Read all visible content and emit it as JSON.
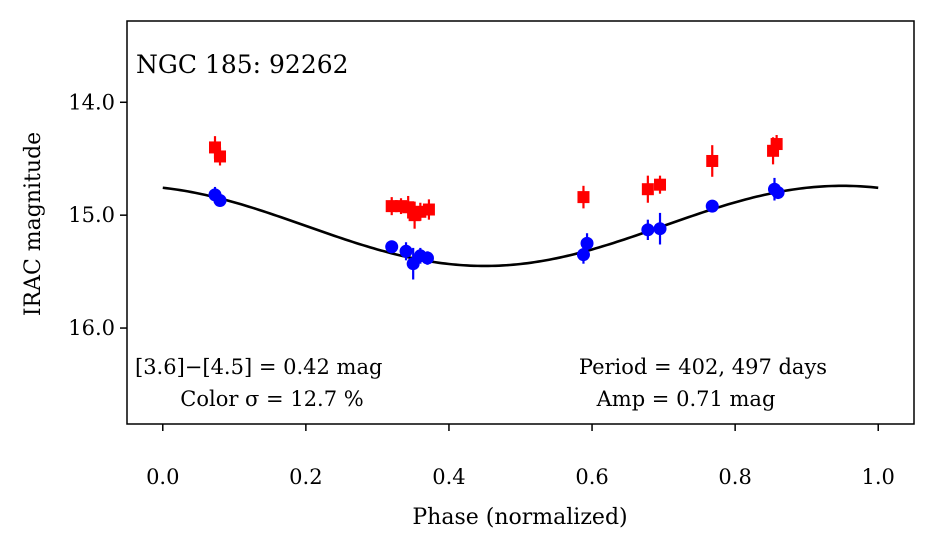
{
  "chart_data": {
    "type": "scatter",
    "title": "",
    "xlabel": "Phase (normalized)",
    "ylabel": "IRAC magnitude",
    "xlim": [
      -0.05,
      1.05
    ],
    "ylim": [
      16.85,
      13.28
    ],
    "y_inverted": true,
    "xticks": [
      0.0,
      0.2,
      0.4,
      0.6,
      0.8,
      1.0
    ],
    "xtick_labels": [
      "0.0",
      "0.2",
      "0.4",
      "0.6",
      "0.8",
      "1.0"
    ],
    "yticks": [
      14.0,
      15.0,
      16.0
    ],
    "ytick_labels": [
      "14.0",
      "15.0",
      "16.0"
    ],
    "grid": false,
    "legend": "none",
    "annotations": {
      "star": "NGC 185: 92262",
      "color_diff": "[3.6]−[4.5] = 0.42 mag",
      "color_sigma": "Color σ = 12.7 %",
      "period": "Period = 402, 497 days",
      "amp": "Amp = 0.71 mag"
    },
    "series": [
      {
        "color": "#ff0000",
        "marker": "square",
        "points": [
          {
            "x": 0.073,
            "y": 14.4,
            "err": 0.1
          },
          {
            "x": 0.08,
            "y": 14.48,
            "err": 0.08
          },
          {
            "x": 0.32,
            "y": 14.92,
            "err": 0.08
          },
          {
            "x": 0.333,
            "y": 14.92,
            "err": 0.07
          },
          {
            "x": 0.343,
            "y": 14.93,
            "err": 0.1
          },
          {
            "x": 0.352,
            "y": 15.0,
            "err": 0.12
          },
          {
            "x": 0.36,
            "y": 14.97,
            "err": 0.08
          },
          {
            "x": 0.372,
            "y": 14.95,
            "err": 0.09
          },
          {
            "x": 0.588,
            "y": 14.84,
            "err": 0.1
          },
          {
            "x": 0.678,
            "y": 14.77,
            "err": 0.12
          },
          {
            "x": 0.695,
            "y": 14.73,
            "err": 0.08
          },
          {
            "x": 0.768,
            "y": 14.52,
            "err": 0.14
          },
          {
            "x": 0.853,
            "y": 14.43,
            "err": 0.12
          },
          {
            "x": 0.858,
            "y": 14.37,
            "err": 0.08
          }
        ]
      },
      {
        "color": "#0000ff",
        "marker": "circle",
        "points": [
          {
            "x": 0.073,
            "y": 14.82,
            "err": 0.07
          },
          {
            "x": 0.08,
            "y": 14.87,
            "err": 0.05
          },
          {
            "x": 0.32,
            "y": 15.28,
            "err": 0.04
          },
          {
            "x": 0.34,
            "y": 15.32,
            "err": 0.08
          },
          {
            "x": 0.35,
            "y": 15.43,
            "err": 0.14
          },
          {
            "x": 0.36,
            "y": 15.36,
            "err": 0.07
          },
          {
            "x": 0.37,
            "y": 15.38,
            "err": 0.06
          },
          {
            "x": 0.588,
            "y": 15.35,
            "err": 0.08
          },
          {
            "x": 0.593,
            "y": 15.25,
            "err": 0.09
          },
          {
            "x": 0.678,
            "y": 15.13,
            "err": 0.09
          },
          {
            "x": 0.695,
            "y": 15.12,
            "err": 0.14
          },
          {
            "x": 0.768,
            "y": 14.92,
            "err": 0.05
          },
          {
            "x": 0.855,
            "y": 14.77,
            "err": 0.1
          },
          {
            "x": 0.86,
            "y": 14.8,
            "err": 0.05
          }
        ]
      }
    ],
    "fit_curve": {
      "color": "#000000",
      "function": "sine",
      "mean": 15.095,
      "amplitude": 0.355,
      "phase_of_maximum": 0.95,
      "x_range": [
        0.0,
        1.0
      ]
    }
  }
}
